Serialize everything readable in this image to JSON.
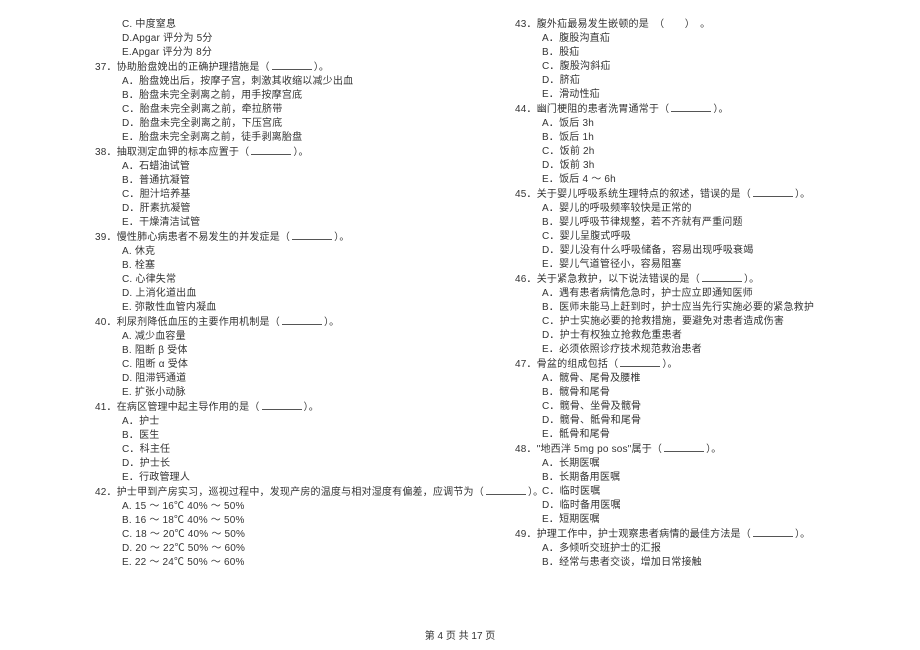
{
  "footer": "第 4 页 共 17 页",
  "left": [
    {
      "indent": 2,
      "t": "C. 中度窒息"
    },
    {
      "indent": 2,
      "t": "D.Apgar 评分为 5分"
    },
    {
      "indent": 2,
      "t": "E.Apgar 评分为 8分"
    },
    {
      "indent": 0,
      "t": "37．协助胎盘娩出的正确护理措施是（",
      "blank": true,
      "tail": "）。"
    },
    {
      "indent": 2,
      "t": "A．胎盘娩出后，按摩子宫，刺激其收缩以减少出血"
    },
    {
      "indent": 2,
      "t": "B．胎盘未完全剥离之前，用手按摩宫底"
    },
    {
      "indent": 2,
      "t": "C．胎盘未完全剥离之前，牵拉脐带"
    },
    {
      "indent": 2,
      "t": "D．胎盘未完全剥离之前，下压宫底"
    },
    {
      "indent": 2,
      "t": "E．胎盘未完全剥离之前，徒手剥离胎盘"
    },
    {
      "indent": 0,
      "t": "38．抽取测定血钾的标本应置于（",
      "blank": true,
      "tail": "）。"
    },
    {
      "indent": 2,
      "t": "A．石蜡油试管"
    },
    {
      "indent": 2,
      "t": "B．普通抗凝管"
    },
    {
      "indent": 2,
      "t": "C．胆汁培养基"
    },
    {
      "indent": 2,
      "t": "D．肝素抗凝管"
    },
    {
      "indent": 2,
      "t": "E．干燥清洁试管"
    },
    {
      "indent": 0,
      "t": "39．慢性肺心病患者不易发生的并发症是（",
      "blank": true,
      "tail": "）。"
    },
    {
      "indent": 2,
      "t": "A. 休克"
    },
    {
      "indent": 2,
      "t": "B. 栓塞"
    },
    {
      "indent": 2,
      "t": "C. 心律失常"
    },
    {
      "indent": 2,
      "t": "D. 上消化道出血"
    },
    {
      "indent": 2,
      "t": "E. 弥散性血管内凝血"
    },
    {
      "indent": 0,
      "t": "40．利尿剂降低血压的主要作用机制是（",
      "blank": true,
      "tail": "）。"
    },
    {
      "indent": 2,
      "t": "A. 减少血容量"
    },
    {
      "indent": 2,
      "t": "B. 阻断 β 受体"
    },
    {
      "indent": 2,
      "t": "C. 阻断 α 受体"
    },
    {
      "indent": 2,
      "t": "D. 阻滞钙通道"
    },
    {
      "indent": 2,
      "t": "E. 扩张小动脉"
    },
    {
      "indent": 0,
      "t": "41．在病区管理中起主导作用的是（",
      "blank": true,
      "tail": "）。"
    },
    {
      "indent": 2,
      "t": "A．护士"
    },
    {
      "indent": 2,
      "t": "B．医生"
    },
    {
      "indent": 2,
      "t": "C．科主任"
    },
    {
      "indent": 2,
      "t": "D．护士长"
    },
    {
      "indent": 2,
      "t": "E．行政管理人"
    },
    {
      "indent": 0,
      "t": "42．护士甲到产房实习，巡视过程中，发现产房的温度与相对湿度有偏差，应调节为（",
      "blank": true,
      "tail": "）。"
    },
    {
      "indent": 2,
      "t": "A. 15 ～ 16℃ 40% ～ 50%"
    },
    {
      "indent": 2,
      "t": "B. 16 ～ 18℃ 40% ～ 50%"
    },
    {
      "indent": 2,
      "t": "C. 18 ～ 20℃ 40% ～ 50%"
    },
    {
      "indent": 2,
      "t": "D. 20 ～ 22℃ 50% ～ 60%"
    },
    {
      "indent": 2,
      "t": "E. 22 ～ 24℃ 50% ～ 60%"
    }
  ],
  "right": [
    {
      "indent": 0,
      "t": "43．腹外疝最易发生嵌顿的是　（　　）　。"
    },
    {
      "indent": 2,
      "t": "A．腹股沟直疝"
    },
    {
      "indent": 2,
      "t": "B．股疝"
    },
    {
      "indent": 2,
      "t": "C．腹股沟斜疝"
    },
    {
      "indent": 2,
      "t": "D．脐疝"
    },
    {
      "indent": 2,
      "t": "E．滑动性疝"
    },
    {
      "indent": 0,
      "t": "44．幽门梗阻的患者洗胃通常于（",
      "blank": true,
      "tail": "）。"
    },
    {
      "indent": 2,
      "t": "A．饭后 3h"
    },
    {
      "indent": 2,
      "t": "B．饭后 1h"
    },
    {
      "indent": 2,
      "t": "C．饭前 2h"
    },
    {
      "indent": 2,
      "t": "D．饭前 3h"
    },
    {
      "indent": 2,
      "t": "E．饭后 4 ～ 6h"
    },
    {
      "indent": 0,
      "t": "45．关于婴儿呼吸系统生理特点的叙述，错误的是（",
      "blank": true,
      "tail": "）。"
    },
    {
      "indent": 2,
      "t": "A．婴儿的呼吸频率较快是正常的"
    },
    {
      "indent": 2,
      "t": "B．婴儿呼吸节律规整，若不齐就有严重问题"
    },
    {
      "indent": 2,
      "t": "C．婴儿呈腹式呼吸"
    },
    {
      "indent": 2,
      "t": "D．婴儿没有什么呼吸储备，容易出现呼吸衰竭"
    },
    {
      "indent": 2,
      "t": "E．婴儿气道管径小，容易阻塞"
    },
    {
      "indent": 0,
      "t": "46．关于紧急救护，以下说法错误的是（",
      "blank": true,
      "tail": "）。"
    },
    {
      "indent": 2,
      "t": "A．遇有患者病情危急时，护士应立即通知医师"
    },
    {
      "indent": 2,
      "t": "B．医师未能马上赶到时，护士应当先行实施必要的紧急救护"
    },
    {
      "indent": 2,
      "t": "C．护士实施必要的抢救措施，要避免对患者造成伤害"
    },
    {
      "indent": 2,
      "t": "D．护士有权独立抢救危重患者"
    },
    {
      "indent": 2,
      "t": "E．必须依照诊疗技术规范救治患者"
    },
    {
      "indent": 0,
      "t": "47．骨盆的组成包括（",
      "blank": true,
      "tail": "）。"
    },
    {
      "indent": 2,
      "t": "A．髋骨、尾骨及腰椎"
    },
    {
      "indent": 2,
      "t": "B．髋骨和尾骨"
    },
    {
      "indent": 2,
      "t": "C．髋骨、坐骨及髋骨"
    },
    {
      "indent": 2,
      "t": "D．髋骨、骶骨和尾骨"
    },
    {
      "indent": 2,
      "t": "E．骶骨和尾骨"
    },
    {
      "indent": 0,
      "t": "48．\"地西泮 5mg po sos\"属于（",
      "blank": true,
      "tail": "）。"
    },
    {
      "indent": 2,
      "t": "A．长期医嘱"
    },
    {
      "indent": 2,
      "t": "B．长期备用医嘱"
    },
    {
      "indent": 2,
      "t": "C．临时医嘱"
    },
    {
      "indent": 2,
      "t": "D．临时备用医嘱"
    },
    {
      "indent": 2,
      "t": "E．短期医嘱"
    },
    {
      "indent": 0,
      "t": "49．护理工作中，护士观察患者病情的最佳方法是（",
      "blank": true,
      "tail": "）。"
    },
    {
      "indent": 2,
      "t": "A．多倾听交班护士的汇报"
    },
    {
      "indent": 2,
      "t": "B．经常与患者交谈，增加日常接触"
    }
  ]
}
